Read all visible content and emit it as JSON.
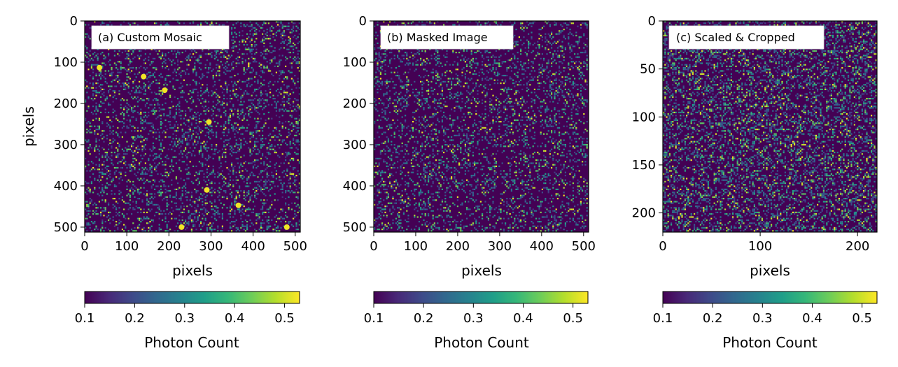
{
  "chart_data": [
    {
      "type": "heatmap",
      "panel_label": "(a) Custom Mosaic",
      "xlabel": "pixels",
      "ylabel": "pixels",
      "xlim": [
        0,
        512
      ],
      "ylim": [
        512,
        0
      ],
      "x_ticks": [
        0,
        100,
        200,
        300,
        400,
        500
      ],
      "y_ticks": [
        0,
        100,
        200,
        300,
        400,
        500
      ],
      "colorbar": {
        "label": "Photon Count",
        "range": [
          0.1,
          0.53
        ],
        "ticks": [
          0.1,
          0.2,
          0.3,
          0.4,
          0.5
        ],
        "colormap": "viridis"
      },
      "background_value": 0.1,
      "noise_density": 0.2,
      "bright_spots": [
        {
          "x": 35,
          "y": 113
        },
        {
          "x": 190,
          "y": 168
        },
        {
          "x": 295,
          "y": 245
        },
        {
          "x": 480,
          "y": 500
        },
        {
          "x": 365,
          "y": 447
        },
        {
          "x": 290,
          "y": 410
        },
        {
          "x": 230,
          "y": 500
        },
        {
          "x": 140,
          "y": 135
        }
      ]
    },
    {
      "type": "heatmap",
      "panel_label": "(b) Masked Image",
      "xlabel": "pixels",
      "ylabel": "",
      "xlim": [
        0,
        512
      ],
      "ylim": [
        512,
        0
      ],
      "x_ticks": [
        0,
        100,
        200,
        300,
        400,
        500
      ],
      "y_ticks": [
        0,
        100,
        200,
        300,
        400,
        500
      ],
      "colorbar": {
        "label": "Photon Count",
        "range": [
          0.1,
          0.53
        ],
        "ticks": [
          0.1,
          0.2,
          0.3,
          0.4,
          0.5
        ],
        "colormap": "viridis"
      },
      "background_value": 0.1,
      "noise_density": 0.2,
      "bright_spots": []
    },
    {
      "type": "heatmap",
      "panel_label": "(c) Scaled & Cropped",
      "xlabel": "pixels",
      "ylabel": "",
      "xlim": [
        0,
        220
      ],
      "ylim": [
        220,
        0
      ],
      "x_ticks": [
        0,
        100,
        200
      ],
      "y_ticks": [
        0,
        50,
        100,
        150,
        200
      ],
      "colorbar": {
        "label": "Photon Count",
        "range": [
          0.1,
          0.53
        ],
        "ticks": [
          0.1,
          0.2,
          0.3,
          0.4,
          0.5
        ],
        "colormap": "viridis"
      },
      "background_value": 0.1,
      "noise_density": 0.3,
      "bright_spots": []
    }
  ]
}
